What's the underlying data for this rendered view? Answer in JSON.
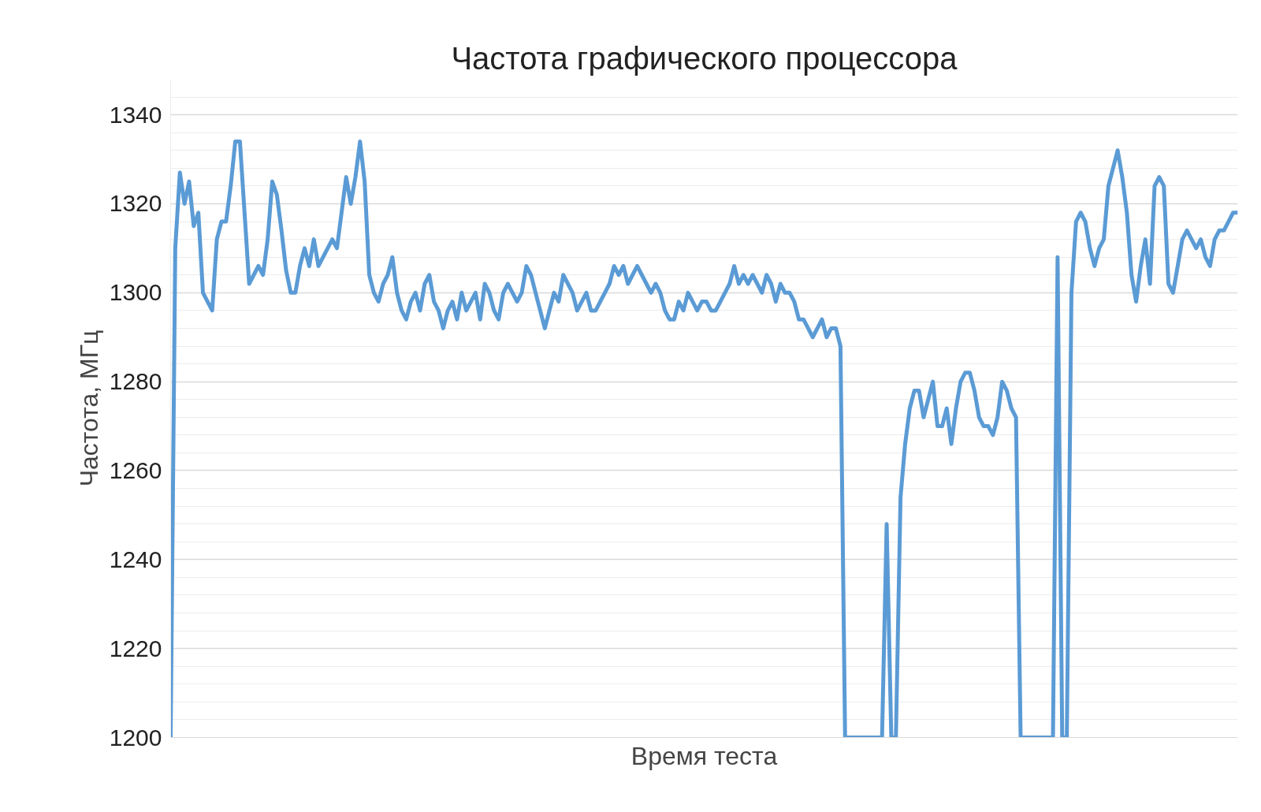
{
  "chart_data": {
    "type": "line",
    "title": "Частота графического процессора",
    "xlabel": "Время теста",
    "ylabel": "Частота, МГц",
    "ylim": [
      1200,
      1348
    ],
    "yticks": [
      1200,
      1220,
      1240,
      1260,
      1280,
      1300,
      1320,
      1340
    ],
    "grid": "y",
    "marker": "none",
    "line_style": "solid",
    "series": [
      {
        "color": "#5b9bd5",
        "values": [
          1200,
          1310,
          1327,
          1320,
          1325,
          1315,
          1318,
          1300,
          1298,
          1296,
          1312,
          1316,
          1316,
          1324,
          1334,
          1334,
          1318,
          1302,
          1304,
          1306,
          1304,
          1312,
          1325,
          1322,
          1314,
          1305,
          1300,
          1300,
          1306,
          1310,
          1306,
          1312,
          1306,
          1308,
          1310,
          1312,
          1310,
          1318,
          1326,
          1320,
          1326,
          1334,
          1325,
          1304,
          1300,
          1298,
          1302,
          1304,
          1308,
          1300,
          1296,
          1294,
          1298,
          1300,
          1296,
          1302,
          1304,
          1298,
          1296,
          1292,
          1296,
          1298,
          1294,
          1300,
          1296,
          1298,
          1300,
          1294,
          1302,
          1300,
          1296,
          1294,
          1300,
          1302,
          1300,
          1298,
          1300,
          1306,
          1304,
          1300,
          1296,
          1292,
          1296,
          1300,
          1298,
          1304,
          1302,
          1300,
          1296,
          1298,
          1300,
          1296,
          1296,
          1298,
          1300,
          1302,
          1306,
          1304,
          1306,
          1302,
          1304,
          1306,
          1304,
          1302,
          1300,
          1302,
          1300,
          1296,
          1294,
          1294,
          1298,
          1296,
          1300,
          1298,
          1296,
          1298,
          1298,
          1296,
          1296,
          1298,
          1300,
          1302,
          1306,
          1302,
          1304,
          1302,
          1304,
          1302,
          1300,
          1304,
          1302,
          1298,
          1302,
          1300,
          1300,
          1298,
          1294,
          1294,
          1292,
          1290,
          1292,
          1294,
          1290,
          1292,
          1292,
          1288,
          1200,
          1200,
          1200,
          1200,
          1200,
          1200,
          1200,
          1200,
          1200,
          1248,
          1200,
          1200,
          1254,
          1266,
          1274,
          1278,
          1278,
          1272,
          1276,
          1280,
          1270,
          1270,
          1274,
          1266,
          1274,
          1280,
          1282,
          1282,
          1278,
          1272,
          1270,
          1270,
          1268,
          1272,
          1280,
          1278,
          1274,
          1272,
          1200,
          1200,
          1200,
          1200,
          1200,
          1200,
          1200,
          1200,
          1308,
          1200,
          1200,
          1300,
          1316,
          1318,
          1316,
          1310,
          1306,
          1310,
          1312,
          1324,
          1328,
          1332,
          1326,
          1318,
          1304,
          1298,
          1306,
          1312,
          1302,
          1324,
          1326,
          1324,
          1302,
          1300,
          1306,
          1312,
          1314,
          1312,
          1310,
          1312,
          1308,
          1306,
          1312,
          1314,
          1314,
          1316,
          1318,
          1318
        ]
      }
    ],
    "categories": [
      null,
      null,
      null,
      null,
      null,
      null,
      null,
      null,
      null,
      null,
      null,
      null,
      null,
      null,
      null,
      null,
      null,
      null,
      null,
      null,
      null,
      null,
      null,
      null,
      null,
      null,
      null,
      null,
      null,
      null,
      null,
      null,
      null,
      null,
      null,
      null,
      null,
      null,
      null,
      null,
      null,
      null,
      null,
      null,
      null,
      null,
      null,
      null,
      null,
      null,
      null,
      null,
      null,
      null,
      null,
      null,
      null,
      null,
      null,
      null,
      null,
      null,
      null,
      null,
      null,
      null,
      null,
      null,
      null,
      null,
      null,
      null,
      null,
      null,
      null,
      null,
      null,
      null,
      null,
      null,
      null,
      null,
      null,
      null,
      null,
      null,
      null,
      null,
      null,
      null,
      null,
      null,
      null,
      null,
      null,
      null,
      null,
      null,
      null,
      null,
      null,
      null,
      null,
      null,
      null,
      null,
      null,
      null,
      null,
      null,
      null,
      null,
      null,
      null,
      null,
      null,
      null,
      null,
      null,
      null,
      null,
      null,
      null,
      null,
      null,
      null,
      null,
      null,
      null,
      null,
      null,
      null,
      null,
      null,
      null,
      null,
      null,
      null,
      null,
      null,
      null,
      null,
      null,
      null,
      null,
      null,
      null,
      null,
      null,
      null,
      null,
      null,
      null,
      null,
      null,
      null,
      null,
      null,
      null,
      null,
      null,
      null,
      null,
      null,
      null,
      null,
      null,
      null,
      null,
      null,
      null,
      null,
      null,
      null,
      null,
      null,
      null,
      null,
      null,
      null,
      null,
      null,
      null,
      null,
      null,
      null,
      null,
      null,
      null,
      null,
      null,
      null,
      null,
      null,
      null,
      null,
      null,
      null,
      null,
      null,
      null,
      null,
      null,
      null,
      null,
      null,
      null,
      null,
      null,
      null,
      null,
      null,
      null,
      null,
      null,
      null,
      null,
      null,
      null,
      null,
      null,
      null,
      null,
      null,
      null,
      null,
      null,
      null,
      null,
      null,
      null,
      null
    ]
  }
}
